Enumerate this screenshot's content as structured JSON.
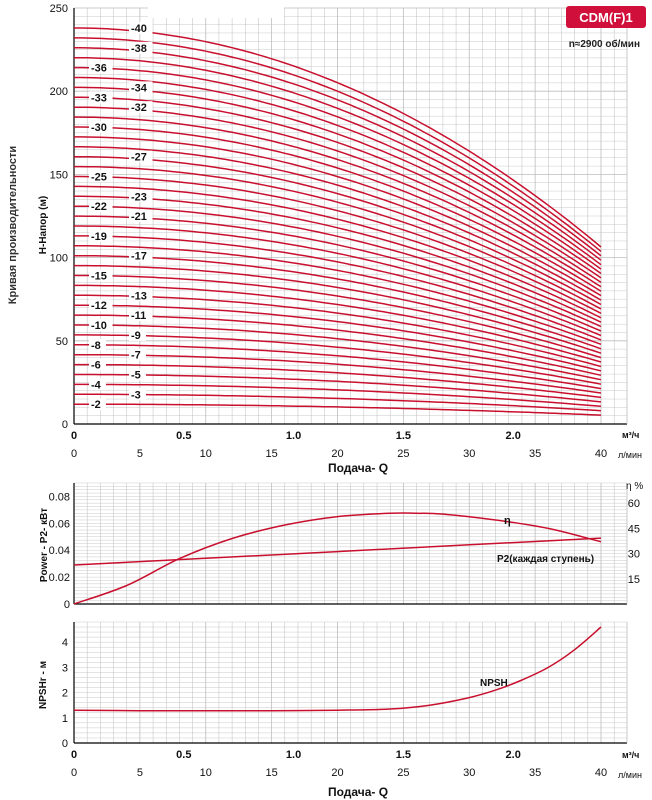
{
  "badge": {
    "text": "CDM(F)1",
    "color": "#d0103a"
  },
  "speed": "n≈2900 об/мин",
  "side_title": "Кривая производительности",
  "colors": {
    "curve": "#c8102e",
    "grid": "#bdbdbd",
    "axis": "#000000"
  },
  "chart_data": [
    {
      "type": "line",
      "id": "head",
      "ylabel": "H-Напор (м)",
      "ylim": [
        0,
        250
      ],
      "y_ticks": [
        "0",
        "50",
        "100",
        "150",
        "200",
        "250"
      ],
      "x_label": "Подача- Q",
      "x_m3h_ticks": [
        "0",
        "0.5",
        "1.0",
        "1.5",
        "2.0"
      ],
      "x_m3h_unit": "м³/ч",
      "x_lmin_ticks": [
        "0",
        "5",
        "10",
        "15",
        "20",
        "25",
        "30",
        "35",
        "40"
      ],
      "x_lmin_unit": "л/мин",
      "xlim_lmin": [
        0,
        40
      ],
      "curve_model": {
        "shutoff_head_per_stage": 5.95,
        "end_head_per_stage": 2.66
      },
      "stages": [
        2,
        3,
        4,
        5,
        6,
        7,
        8,
        9,
        10,
        11,
        12,
        13,
        14,
        15,
        16,
        17,
        18,
        19,
        20,
        21,
        22,
        23,
        24,
        25,
        26,
        27,
        28,
        29,
        30,
        31,
        32,
        33,
        34,
        35,
        36,
        37,
        38,
        39,
        40
      ],
      "labels": [
        "-2",
        "-3",
        "-4",
        "-5",
        "-6",
        "-7",
        "-8",
        "-9",
        "-10",
        "-11",
        "-12",
        "-13",
        "-15",
        "-17",
        "-19",
        "-21",
        "-22",
        "-23",
        "-25",
        "-27",
        "-30",
        "-32",
        "-33",
        "-34",
        "-36",
        "-38",
        "-40"
      ]
    },
    {
      "type": "line",
      "id": "power",
      "ylabel": "Power - P2- кВт",
      "ylim": [
        0,
        0.09
      ],
      "y_ticks": [
        "0",
        "0.02",
        "0.04",
        "0.06",
        "0.08"
      ],
      "y2_label": "η %",
      "y2_ticks": [
        "15",
        "30",
        "45",
        "60"
      ],
      "y2lim": [
        0,
        72
      ],
      "series": [
        {
          "name": "η",
          "x": [
            0,
            4,
            8,
            12,
            16,
            20,
            24,
            26,
            28,
            32,
            36,
            40
          ],
          "y": [
            0,
            11,
            27,
            39,
            47,
            52,
            54,
            54,
            53.5,
            50,
            45,
            37
          ]
        },
        {
          "name": "P2(каждая ступень)",
          "x": [
            0,
            10,
            20,
            30,
            40
          ],
          "y": [
            0.029,
            0.034,
            0.039,
            0.044,
            0.049
          ]
        }
      ]
    },
    {
      "type": "line",
      "id": "npsh",
      "ylabel": "NPSHr - м",
      "ylim": [
        0,
        4.8
      ],
      "y_ticks": [
        "0",
        "1",
        "2",
        "3",
        "4"
      ],
      "x_label": "Подача- Q",
      "x_m3h_ticks": [
        "0",
        "0.5",
        "1.0",
        "1.5",
        "2.0"
      ],
      "x_m3h_unit": "м³/ч",
      "x_lmin_ticks": [
        "0",
        "5",
        "10",
        "15",
        "20",
        "25",
        "30",
        "35",
        "40"
      ],
      "x_lmin_unit": "л/мин",
      "series": [
        {
          "name": "NPSH",
          "x": [
            0,
            5,
            10,
            15,
            20,
            24,
            27,
            30,
            32,
            34,
            36,
            38,
            40
          ],
          "y": [
            1.3,
            1.28,
            1.28,
            1.28,
            1.3,
            1.35,
            1.5,
            1.8,
            2.1,
            2.5,
            3.0,
            3.7,
            4.6
          ]
        }
      ]
    }
  ]
}
